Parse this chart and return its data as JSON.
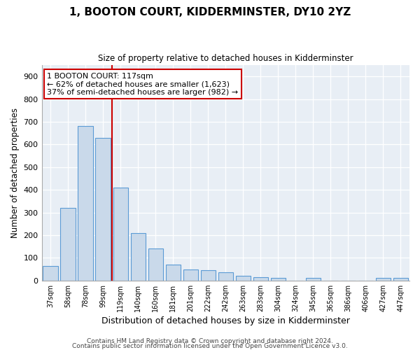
{
  "title": "1, BOOTON COURT, KIDDERMINSTER, DY10 2YZ",
  "subtitle": "Size of property relative to detached houses in Kidderminster",
  "xlabel": "Distribution of detached houses by size in Kidderminster",
  "ylabel": "Number of detached properties",
  "categories": [
    "37sqm",
    "58sqm",
    "78sqm",
    "99sqm",
    "119sqm",
    "140sqm",
    "160sqm",
    "181sqm",
    "201sqm",
    "222sqm",
    "242sqm",
    "263sqm",
    "283sqm",
    "304sqm",
    "324sqm",
    "345sqm",
    "365sqm",
    "386sqm",
    "406sqm",
    "427sqm",
    "447sqm"
  ],
  "values": [
    65,
    320,
    680,
    630,
    410,
    210,
    140,
    70,
    50,
    45,
    35,
    20,
    13,
    10,
    0,
    10,
    0,
    0,
    0,
    10,
    10
  ],
  "bar_color": "#c9d9ea",
  "bar_edge_color": "#5b9bd5",
  "bar_edge_width": 0.8,
  "vline_color": "#cc0000",
  "annotation_text": "1 BOOTON COURT: 117sqm\n← 62% of detached houses are smaller (1,623)\n37% of semi-detached houses are larger (982) →",
  "annotation_box_color": "#ffffff",
  "annotation_box_edge": "#cc0000",
  "ylim": [
    0,
    950
  ],
  "yticks": [
    0,
    100,
    200,
    300,
    400,
    500,
    600,
    700,
    800,
    900
  ],
  "plot_bg_color": "#e8eef5",
  "footer1": "Contains HM Land Registry data © Crown copyright and database right 2024.",
  "footer2": "Contains public sector information licensed under the Open Government Licence v3.0."
}
